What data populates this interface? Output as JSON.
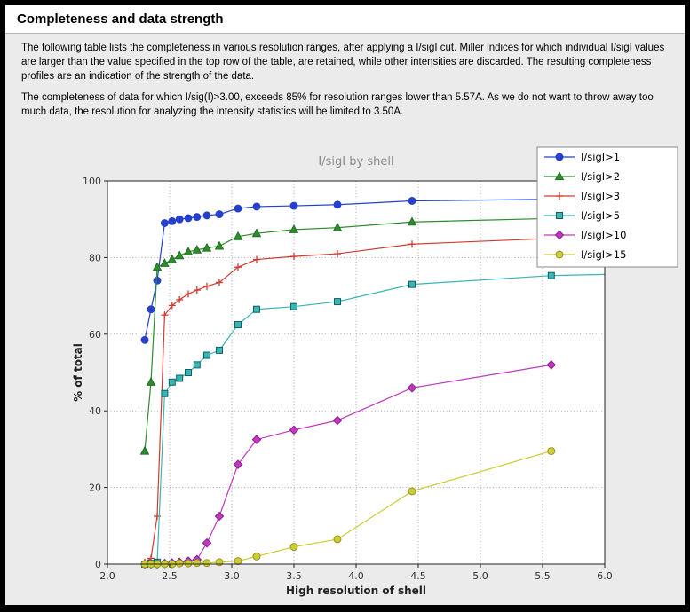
{
  "page": {
    "title": "Completeness and data strength",
    "paragraph1": "The following table lists the completeness in various resolution ranges, after applying a I/sigI cut. Miller indices for which individual I/sigI values are larger than the value specified in the top row of the table, are retained, while other intensities are discarded. The resulting completeness profiles are an indication of the strength of the data.",
    "paragraph2": "The completeness of data for which I/sig(I)>3.00, exceeds  85% for resolution ranges lower than 5.57A. As we do not want to throw away too much data, the resolution for analyzing the intensity statistics will be limited to 3.50A."
  },
  "chart_data": {
    "type": "line",
    "title": "I/sigI by shell",
    "xlabel": "High resolution of shell",
    "ylabel": "% of total",
    "xlim": [
      2.0,
      6.0
    ],
    "ylim": [
      0,
      100
    ],
    "xticks": [
      2.0,
      2.5,
      3.0,
      3.5,
      4.0,
      4.5,
      5.0,
      5.5,
      6.0
    ],
    "yticks": [
      0,
      20,
      40,
      60,
      80,
      100
    ],
    "grid": true,
    "legend_position": "upper right",
    "plot_bg": "#ffffff",
    "grid_color": "#a6a6a6",
    "x": [
      2.3,
      2.35,
      2.4,
      2.46,
      2.52,
      2.58,
      2.65,
      2.72,
      2.8,
      2.9,
      3.05,
      3.2,
      3.5,
      3.85,
      4.45,
      5.57,
      6.0
    ],
    "series": [
      {
        "name": "I/sigI>1",
        "color": "#2440cc",
        "edge": "#2440cc",
        "marker": "circle",
        "values": [
          58.5,
          66.5,
          74.0,
          89.0,
          89.5,
          90.0,
          90.3,
          90.6,
          91.0,
          91.3,
          92.8,
          93.3,
          93.5,
          93.8,
          94.8,
          95.2,
          95.5
        ]
      },
      {
        "name": "I/sigI>2",
        "color": "#2e8b2e",
        "edge": "#1c6b1c",
        "marker": "triangle",
        "values": [
          29.5,
          47.5,
          77.5,
          78.5,
          79.5,
          80.5,
          81.5,
          82.0,
          82.5,
          83.0,
          85.5,
          86.3,
          87.3,
          87.8,
          89.3,
          90.2,
          90.5
        ]
      },
      {
        "name": "I/sigI>3",
        "color": "#cf3b30",
        "edge": "#cf3b30",
        "marker": "plus",
        "values": [
          0.5,
          1.5,
          12.5,
          65.0,
          67.5,
          69.0,
          70.5,
          71.5,
          72.5,
          73.5,
          77.5,
          79.5,
          80.3,
          81.0,
          83.5,
          85.0,
          85.3
        ]
      },
      {
        "name": "I/sigI>5",
        "color": "#3ab5b5",
        "edge": "#0e6363",
        "marker": "square",
        "values": [
          0.0,
          0.2,
          0.5,
          44.5,
          47.5,
          48.5,
          50.0,
          52.0,
          54.5,
          55.8,
          62.5,
          66.5,
          67.2,
          68.5,
          73.0,
          75.3,
          75.6
        ]
      },
      {
        "name": "I/sigI>10",
        "color": "#c238c2",
        "edge": "#8a1d8a",
        "marker": "diamond",
        "values": [
          0.0,
          0.0,
          0.0,
          0.2,
          0.3,
          0.5,
          0.8,
          1.2,
          5.5,
          12.5,
          26.0,
          32.5,
          35.0,
          37.5,
          46.0,
          52.0,
          null
        ]
      },
      {
        "name": "I/sigI>15",
        "color": "#cccc33",
        "edge": "#8f8f1f",
        "marker": "circle",
        "values": [
          0.0,
          0.0,
          0.0,
          0.0,
          0.0,
          0.2,
          0.2,
          0.3,
          0.3,
          0.5,
          0.8,
          2.0,
          4.5,
          6.5,
          19.0,
          29.5,
          null
        ]
      }
    ]
  }
}
